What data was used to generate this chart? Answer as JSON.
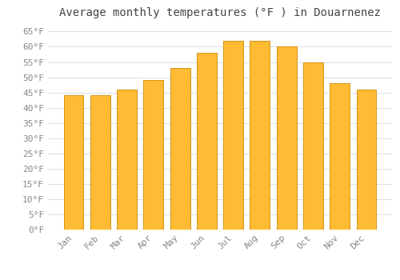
{
  "title": "Average monthly temperatures (°F ) in Douarnenez",
  "months": [
    "Jan",
    "Feb",
    "Mar",
    "Apr",
    "May",
    "Jun",
    "Jul",
    "Aug",
    "Sep",
    "Oct",
    "Nov",
    "Dec"
  ],
  "values": [
    44,
    44,
    46,
    49,
    53,
    58,
    62,
    62,
    60,
    55,
    48,
    46
  ],
  "bar_color": "#FFBB33",
  "bar_edge_color": "#CC8800",
  "background_color": "#FFFFFF",
  "grid_color": "#DDDDDD",
  "ylim": [
    0,
    68
  ],
  "yticks": [
    0,
    5,
    10,
    15,
    20,
    25,
    30,
    35,
    40,
    45,
    50,
    55,
    60,
    65
  ],
  "ytick_labels": [
    "0°F",
    "5°F",
    "10°F",
    "15°F",
    "20°F",
    "25°F",
    "30°F",
    "35°F",
    "40°F",
    "45°F",
    "50°F",
    "55°F",
    "60°F",
    "65°F"
  ],
  "title_fontsize": 10,
  "tick_fontsize": 8,
  "title_font": "monospace",
  "tick_font": "monospace",
  "tick_color": "#888888",
  "title_color": "#444444"
}
